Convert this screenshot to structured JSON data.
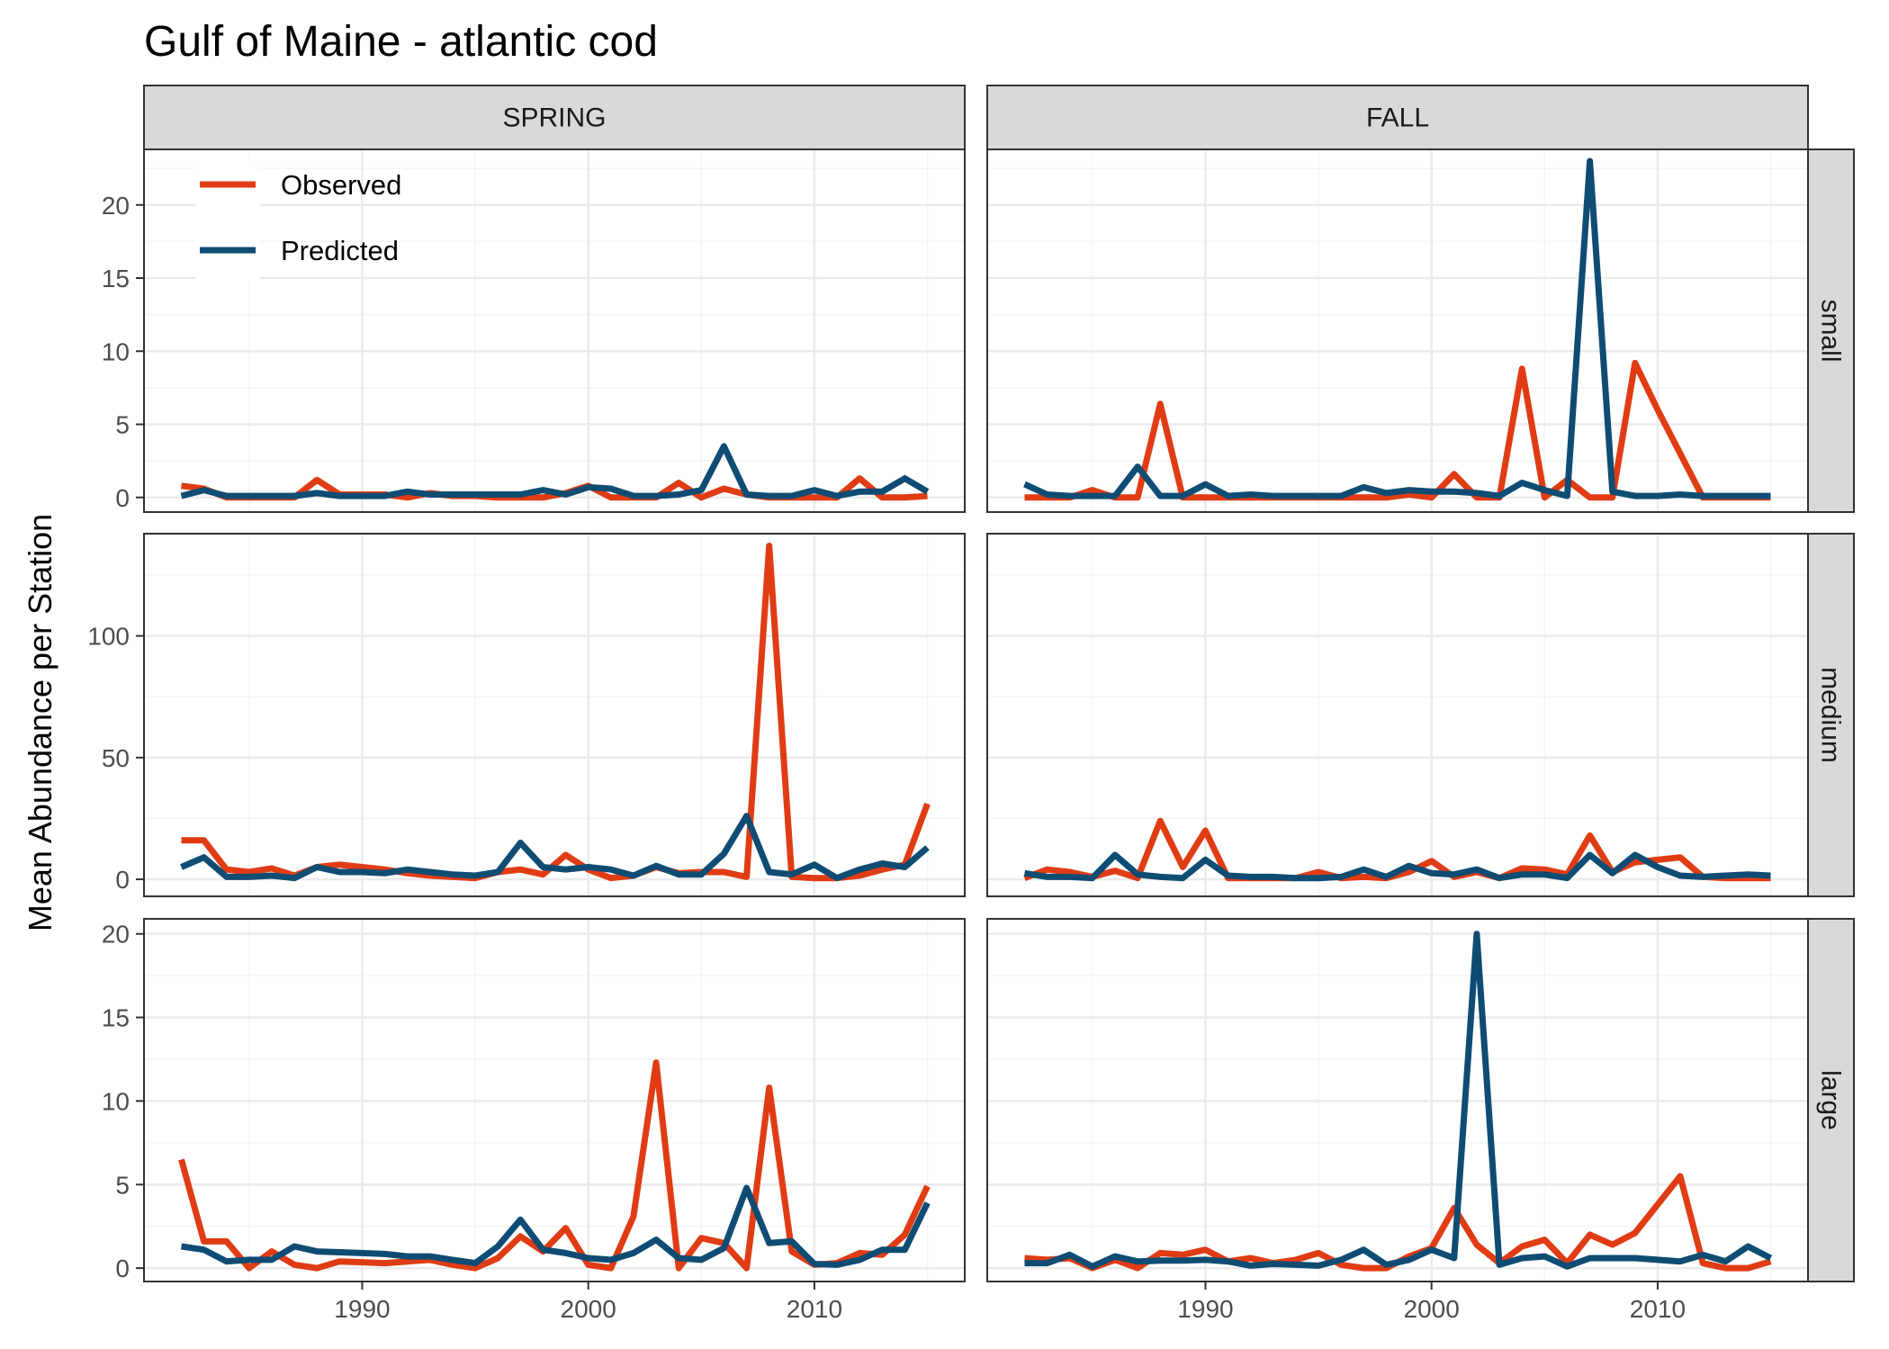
{
  "chart_data": {
    "type": "line",
    "title": "Gulf of Maine - atlantic cod",
    "ylabel": "Mean Abundance per Station",
    "xlabel": "",
    "legend": {
      "placement": "top-left",
      "entries": [
        {
          "name": "Observed",
          "color": "#e03c14"
        },
        {
          "name": "Predicted",
          "color": "#0f4c73"
        }
      ]
    },
    "columns": [
      "SPRING",
      "FALL"
    ],
    "rows": [
      {
        "label": "small",
        "ylim": [
          -1,
          23.8
        ],
        "yticks": [
          0,
          5,
          10,
          15,
          20
        ],
        "yticklabels": [
          "0",
          "5",
          "10",
          "15",
          "20"
        ]
      },
      {
        "label": "medium",
        "ylim": [
          -7,
          142
        ],
        "yticks": [
          0,
          50,
          100
        ],
        "yticklabels": [
          "0",
          "50",
          "100"
        ]
      },
      {
        "label": "large",
        "ylim": [
          -0.8,
          20.9
        ],
        "yticks": [
          0,
          5,
          10,
          15,
          20
        ],
        "yticklabels": [
          "0",
          "5",
          "10",
          "15",
          "20"
        ]
      }
    ],
    "xlim": [
      1980.35,
      2016.65
    ],
    "xticks": [
      1990,
      2000,
      2010
    ],
    "xticklabels": [
      "1990",
      "2000",
      "2010"
    ],
    "x": [
      1982,
      1983,
      1984,
      1985,
      1986,
      1987,
      1988,
      1989,
      1990,
      1991,
      1992,
      1993,
      1994,
      1995,
      1996,
      1997,
      1998,
      1999,
      2000,
      2001,
      2002,
      2003,
      2004,
      2005,
      2006,
      2007,
      2008,
      2009,
      2010,
      2011,
      2012,
      2013,
      2014,
      2015
    ],
    "panels": [
      {
        "row": 0,
        "col": 0,
        "observed": [
          0.8,
          0.6,
          0,
          0,
          0,
          0,
          1.2,
          0.2,
          0.2,
          0.2,
          0,
          0.3,
          0.1,
          0.1,
          0,
          0,
          0,
          0.3,
          0.8,
          0,
          0,
          0,
          1,
          0,
          0.6,
          0.2,
          0,
          0,
          0,
          0,
          1.3,
          0,
          0,
          0.1
        ],
        "predicted": [
          0.1,
          0.5,
          0.1,
          0.1,
          0.1,
          0.1,
          0.3,
          0.1,
          0.1,
          0.1,
          0.4,
          0.2,
          0.2,
          0.2,
          0.2,
          0.2,
          0.5,
          0.2,
          0.7,
          0.6,
          0.1,
          0.1,
          0.2,
          0.5,
          3.5,
          0.2,
          0.1,
          0.1,
          0.5,
          0.1,
          0.4,
          0.4,
          1.3,
          0.4
        ]
      },
      {
        "row": 0,
        "col": 1,
        "observed": [
          0,
          0,
          0,
          0.5,
          0,
          0,
          6.4,
          0,
          0,
          0,
          0,
          0,
          0,
          0,
          0,
          0,
          0,
          0.2,
          0,
          1.6,
          0,
          0,
          8.8,
          0,
          1.2,
          0,
          0,
          9.2,
          6,
          3,
          0,
          0,
          0,
          0
        ],
        "predicted": [
          0.9,
          0.2,
          0.1,
          0.1,
          0.1,
          2.1,
          0.1,
          0.1,
          0.9,
          0.1,
          0.2,
          0.1,
          0.1,
          0.1,
          0.1,
          0.7,
          0.3,
          0.5,
          0.4,
          0.4,
          0.3,
          0.1,
          1,
          0.5,
          0.1,
          23,
          0.4,
          0.1,
          0.1,
          0.2,
          0.1,
          0.1,
          0.1,
          0.1
        ]
      },
      {
        "row": 1,
        "col": 0,
        "observed": [
          16,
          16,
          4,
          3,
          4.5,
          1.5,
          5,
          6,
          5,
          4,
          2.5,
          1.5,
          1,
          0.5,
          3,
          4,
          2,
          10,
          4,
          0.5,
          1.5,
          5,
          2.5,
          3,
          3,
          1,
          137,
          1,
          0.5,
          0.5,
          1.5,
          4,
          6,
          31
        ],
        "predicted": [
          5,
          9,
          1,
          1,
          1.5,
          0.5,
          5,
          3,
          3,
          2.5,
          4,
          3,
          2,
          1.5,
          3,
          15,
          5,
          4,
          5,
          4,
          1.5,
          5.5,
          2,
          2,
          10.5,
          26,
          3,
          2,
          6,
          0.5,
          4,
          6.5,
          5,
          13
        ]
      },
      {
        "row": 1,
        "col": 1,
        "observed": [
          0.5,
          4,
          3,
          1,
          3.5,
          0.5,
          24,
          5,
          20,
          0.5,
          0.5,
          0.5,
          0.5,
          3,
          0.5,
          1,
          0.5,
          3,
          7.5,
          1,
          3,
          0.5,
          4.5,
          4,
          2,
          18,
          3,
          7,
          8,
          9,
          1,
          0.5,
          0.5,
          0.5
        ],
        "predicted": [
          2.5,
          1,
          1,
          0.5,
          10,
          2,
          1,
          0.5,
          8,
          1.5,
          1,
          1,
          0.5,
          0.5,
          1,
          4,
          1,
          5.5,
          2.5,
          2,
          4,
          0.5,
          2,
          2,
          0.5,
          10,
          2.5,
          10,
          5,
          1.5,
          1,
          1.5,
          2,
          1.5
        ]
      },
      {
        "row": 2,
        "col": 0,
        "observed": [
          6.5,
          1.6,
          1.6,
          0,
          1,
          0.2,
          0,
          0.4,
          0.35,
          0.3,
          0.4,
          0.5,
          0.2,
          0,
          0.6,
          1.9,
          1,
          2.4,
          0.2,
          0,
          3.1,
          12.3,
          0,
          1.8,
          1.5,
          0,
          10.8,
          1,
          0.2,
          0.3,
          0.9,
          0.8,
          2,
          4.9
        ],
        "predicted": [
          1.3,
          1.1,
          0.4,
          0.5,
          0.5,
          1.3,
          1,
          0.95,
          0.9,
          0.85,
          0.7,
          0.7,
          0.5,
          0.3,
          1.3,
          2.9,
          1.1,
          0.9,
          0.6,
          0.5,
          0.9,
          1.7,
          0.6,
          0.5,
          1.2,
          4.8,
          1.5,
          1.6,
          0.25,
          0.2,
          0.5,
          1.1,
          1.1,
          3.9
        ]
      },
      {
        "row": 2,
        "col": 1,
        "observed": [
          0.6,
          0.5,
          0.6,
          0,
          0.5,
          0,
          0.9,
          0.8,
          1.1,
          0.4,
          0.6,
          0.3,
          0.5,
          0.9,
          0.2,
          0,
          0,
          0.7,
          1.2,
          3.6,
          1.4,
          0.3,
          1.3,
          1.7,
          0.3,
          2,
          1.4,
          2.1,
          3.8,
          5.5,
          0.3,
          0,
          0,
          0.4
        ],
        "predicted": [
          0.3,
          0.3,
          0.8,
          0.1,
          0.7,
          0.4,
          0.45,
          0.45,
          0.5,
          0.4,
          0.15,
          0.25,
          0.2,
          0.15,
          0.5,
          1.1,
          0.2,
          0.5,
          1.1,
          0.6,
          20,
          0.2,
          0.6,
          0.7,
          0.1,
          0.6,
          0.6,
          0.6,
          0.5,
          0.4,
          0.8,
          0.4,
          1.3,
          0.6
        ]
      }
    ]
  }
}
